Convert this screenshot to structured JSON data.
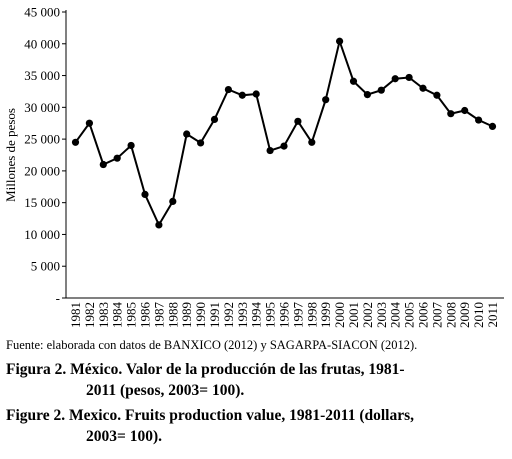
{
  "chart_data": {
    "type": "line",
    "title": "",
    "xlabel": "",
    "ylabel": "Millones de pesos",
    "ylim": [
      0,
      45000
    ],
    "ytick_labels": [
      "-",
      "5 000",
      "10 000",
      "15 000",
      "20 000",
      "25 000",
      "30 000",
      "35 000",
      "40 000",
      "45 000"
    ],
    "yticks": [
      0,
      5000,
      10000,
      15000,
      20000,
      25000,
      30000,
      35000,
      40000,
      45000
    ],
    "grid": false,
    "line_color": "#000000",
    "x": [
      "1981",
      "1982",
      "1983",
      "1984",
      "1985",
      "1986",
      "1987",
      "1988",
      "1989",
      "1990",
      "1991",
      "1992",
      "1993",
      "1994",
      "1995",
      "1996",
      "1997",
      "1998",
      "1999",
      "2000",
      "2001",
      "2002",
      "2003",
      "2004",
      "2005",
      "2006",
      "2007",
      "2008",
      "2009",
      "2010",
      "2011"
    ],
    "series": [
      {
        "values": [
          24500,
          27500,
          21000,
          22000,
          24000,
          16300,
          11500,
          15200,
          25800,
          24400,
          28100,
          32800,
          31900,
          32100,
          23200,
          23900,
          27800,
          24500,
          31200,
          40400,
          34100,
          32000,
          32700,
          34500,
          34700,
          33000,
          31900,
          29000,
          29500,
          28000,
          27000
        ]
      }
    ]
  },
  "source_text": "Fuente: elaborada con datos de BANXICO (2012) y SAGARPA-SIACON (2012).",
  "caption_es_line1": "Figura 2. México. Valor de la producción de las frutas, 1981-",
  "caption_es_line2": "2011 (pesos, 2003= 100).",
  "caption_en_line1": "Figure 2. Mexico. Fruits production value, 1981-2011 (dollars,",
  "caption_en_line2": "2003= 100)."
}
